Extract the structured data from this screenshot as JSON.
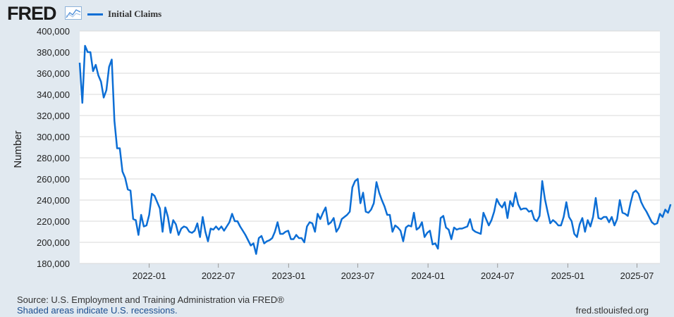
{
  "header": {
    "logo_text": "FRED",
    "logo_icon": "trend-line-icon",
    "legend_label": "Initial Claims"
  },
  "footer": {
    "source": "Source: U.S. Employment and Training Administration via FRED®",
    "recessions": "Shaded areas indicate U.S. recessions.",
    "site": "fred.stlouisfed.org"
  },
  "colors": {
    "line": "#0c6ed5",
    "plot_background": "#ffffff",
    "page_background": "#e1e9f0",
    "grid": "#d9d9d9"
  },
  "chart_data": {
    "type": "line",
    "title": "",
    "xlabel": "",
    "ylabel": "Number",
    "ylim": [
      180000,
      400000
    ],
    "yticks": [
      180000,
      200000,
      220000,
      240000,
      260000,
      280000,
      300000,
      320000,
      340000,
      360000,
      380000,
      400000
    ],
    "ytick_labels": [
      "180,000",
      "200,000",
      "220,000",
      "240,000",
      "260,000",
      "280,000",
      "300,000",
      "320,000",
      "340,000",
      "360,000",
      "380,000",
      "400,000"
    ],
    "xlim": [
      "2021-07-03",
      "2025-08-30"
    ],
    "xticks": [
      "2022-01-01",
      "2022-07-01",
      "2023-01-01",
      "2023-07-01",
      "2024-01-01",
      "2024-07-01",
      "2025-01-01",
      "2025-07-01"
    ],
    "xtick_labels": [
      "2022-01",
      "2022-07",
      "2023-01",
      "2023-07",
      "2024-01",
      "2024-07",
      "2025-01",
      "2025-07"
    ],
    "grid": true,
    "legend": "top-left",
    "series": [
      {
        "name": "Initial Claims",
        "frequency": "weekly",
        "start": "2021-07-03",
        "values": [
          370000,
          332000,
          386000,
          380000,
          380000,
          362000,
          368000,
          358000,
          352000,
          337000,
          344000,
          366000,
          373000,
          315000,
          289000,
          289000,
          267000,
          261000,
          250000,
          249000,
          222000,
          221000,
          207000,
          226000,
          215000,
          216000,
          226000,
          246000,
          244000,
          238000,
          232000,
          210000,
          233000,
          224000,
          209000,
          221000,
          217000,
          207000,
          213000,
          215000,
          214000,
          210000,
          209000,
          211000,
          218000,
          205000,
          224000,
          210000,
          201000,
          213000,
          212000,
          215000,
          212000,
          215000,
          211000,
          215000,
          219000,
          227000,
          220000,
          220000,
          215000,
          211000,
          207000,
          202000,
          197000,
          199000,
          189000,
          204000,
          206000,
          199000,
          201000,
          202000,
          204000,
          210000,
          219000,
          208000,
          208000,
          210000,
          211000,
          203000,
          203000,
          207000,
          204000,
          204000,
          200000,
          215000,
          219000,
          218000,
          210000,
          227000,
          222000,
          228000,
          233000,
          217000,
          219000,
          223000,
          210000,
          214000,
          222000,
          224000,
          226000,
          229000,
          252000,
          258000,
          260000,
          237000,
          247000,
          229000,
          228000,
          231000,
          237000,
          257000,
          247000,
          240000,
          234000,
          226000,
          226000,
          210000,
          216000,
          214000,
          211000,
          201000,
          214000,
          216000,
          215000,
          228000,
          212000,
          214000,
          219000,
          205000,
          209000,
          211000,
          198000,
          199000,
          194000,
          223000,
          225000,
          214000,
          212000,
          203000,
          214000,
          212000,
          213000,
          213000,
          214000,
          215000,
          222000,
          212000,
          210000,
          209000,
          208000,
          228000,
          222000,
          216000,
          221000,
          229000,
          241000,
          236000,
          233000,
          238000,
          223000,
          239000,
          234000,
          247000,
          236000,
          231000,
          232000,
          232000,
          229000,
          230000,
          222000,
          220000,
          225000,
          258000,
          241000,
          229000,
          218000,
          221000,
          219000,
          216000,
          216000,
          224000,
          238000,
          224000,
          220000,
          208000,
          205000,
          217000,
          223000,
          210000,
          221000,
          215000,
          224000,
          242000,
          223000,
          222000,
          224000,
          224000,
          219000,
          224000,
          216000,
          222000,
          240000,
          228000,
          227000,
          225000,
          237000,
          247000,
          249000,
          246000,
          238000,
          233000,
          229000,
          224000,
          219000,
          217000,
          218000,
          227000,
          224000,
          231000,
          228000,
          236000
        ]
      }
    ]
  }
}
